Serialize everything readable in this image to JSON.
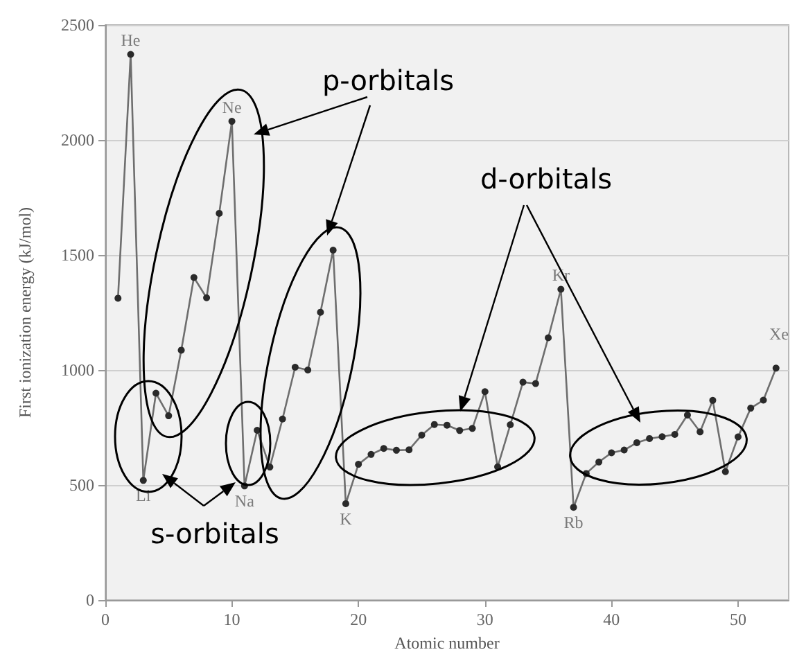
{
  "chart_data": {
    "type": "line",
    "xlabel": "Atomic number",
    "ylabel": "First ionization energy (kJ/mol)",
    "x": [
      1,
      2,
      3,
      4,
      5,
      6,
      7,
      8,
      9,
      10,
      11,
      12,
      13,
      14,
      15,
      16,
      17,
      18,
      19,
      20,
      21,
      22,
      23,
      24,
      25,
      26,
      27,
      28,
      29,
      30,
      31,
      32,
      33,
      34,
      35,
      36,
      37,
      38,
      39,
      40,
      41,
      42,
      43,
      44,
      45,
      46,
      47,
      48,
      49,
      50,
      51,
      52,
      53
    ],
    "series": [
      {
        "color": "#6e6e6e",
        "values": [
          1312,
          2372,
          520,
          899,
          801,
          1086,
          1402,
          1314,
          1681,
          2081,
          496,
          738,
          578,
          787,
          1012,
          1000,
          1251,
          1521,
          419,
          590,
          633,
          659,
          651,
          653,
          717,
          763,
          760,
          737,
          746,
          906,
          579,
          762,
          947,
          941,
          1140,
          1351,
          403,
          550,
          600,
          640,
          652,
          684,
          702,
          710,
          720,
          804,
          731,
          868,
          558,
          709,
          834,
          869,
          1008
        ]
      }
    ],
    "xlim": [
      0,
      54
    ],
    "xticks": [
      0,
      10,
      20,
      30,
      40,
      50
    ],
    "ylim": [
      0,
      2500
    ],
    "yticks": [
      0,
      500,
      1000,
      1500,
      2000,
      2500
    ],
    "grid": "y",
    "marker": "circle",
    "line_style": "solid",
    "annotations": [
      "p-orbitals",
      "d-orbitals",
      "s-orbitals",
      {
        "text": "He",
        "x": 2,
        "y": 2372
      },
      {
        "text": "Ne",
        "x": 10,
        "y": 2081
      },
      {
        "text": "Li",
        "x": 3,
        "y": 520
      },
      {
        "text": "Na",
        "x": 11,
        "y": 496
      },
      {
        "text": "K",
        "x": 19,
        "y": 419
      },
      {
        "text": "Kr",
        "x": 36,
        "y": 1351
      },
      {
        "text": "Rb",
        "x": 37,
        "y": 403
      },
      "Xe"
    ]
  }
}
